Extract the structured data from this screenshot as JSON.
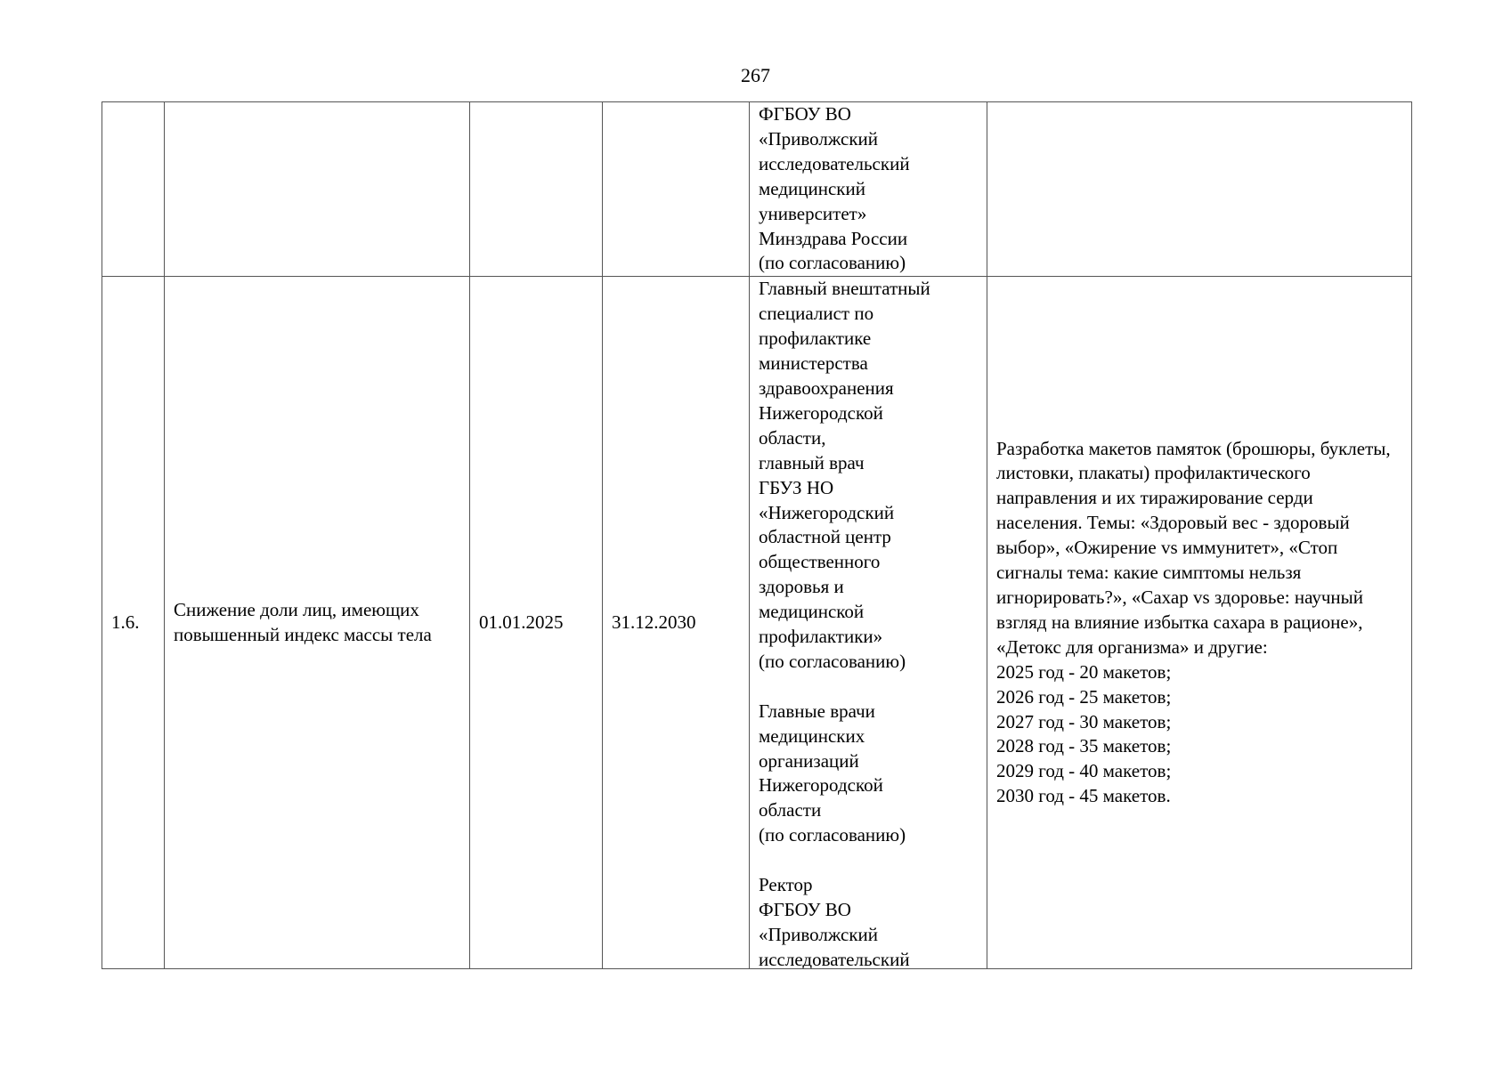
{
  "page_number": "267",
  "rows": [
    {
      "number": "",
      "name": "",
      "start_date": "",
      "end_date": "",
      "responsible": "ФГБОУ ВО\n«Приволжский\nисследовательский\nмедицинский\nуниверситет»\nМинздрава России\n(по согласованию)",
      "result": ""
    },
    {
      "number": "1.6.",
      "name": "Снижение доли лиц, имеющих повышенный индекс массы тела",
      "start_date": "01.01.2025",
      "end_date": "31.12.2030",
      "responsible": "Главный внештатный\nспециалист по\nпрофилактике\nминистерства\nздравоохранения\nНижегородской\nобласти,\nглавный врач\nГБУЗ НО\n«Нижегородский\nобластной центр\nобщественного\nздоровья и\nмедицинской\nпрофилактики»\n(по согласованию)\n\nГлавные врачи\nмедицинских\nорганизаций\nНижегородской\nобласти\n(по согласованию)\n\nРектор\nФГБОУ ВО\n«Приволжский\nисследовательский",
      "result": "Разработка макетов памяток (брошюры, буклеты, листовки, плакаты) профилактического направления и их тиражирование серди населения. Темы: «Здоровый вес - здоровый выбор», «Ожирение vs иммунитет», «Стоп сигналы тема: какие симптомы нельзя игнорировать?», «Сахар vs здоровье: научный взгляд на влияние избытка сахара в рационе», «Детокс для организма» и другие:\n2025 год - 20 макетов;\n2026 год - 25 макетов;\n2027 год - 30 макетов;\n2028 год - 35 макетов;\n2029 год - 40 макетов;\n2030 год - 45 макетов."
    }
  ]
}
